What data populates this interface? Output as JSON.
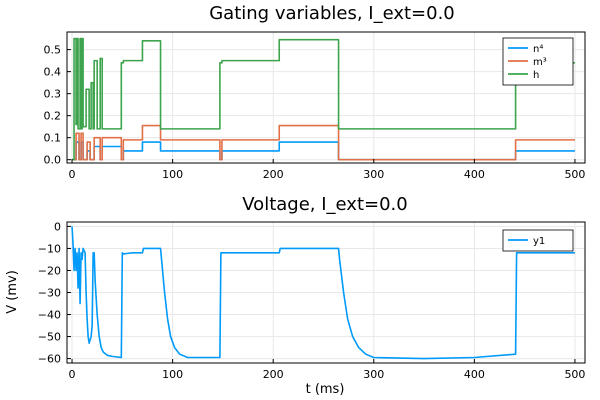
{
  "chart_data": [
    {
      "type": "line",
      "title": "Gating variables, I_ext=0.0",
      "xlabel": "",
      "ylabel": "",
      "xlim": [
        -5,
        510
      ],
      "ylim": [
        -0.015,
        0.58
      ],
      "xticks": [
        0,
        100,
        200,
        300,
        400,
        500
      ],
      "yticks": [
        0.0,
        0.1,
        0.2,
        0.3,
        0.4,
        0.5
      ],
      "ytick_labels": [
        "0.0",
        "0.1",
        "0.2",
        "0.3",
        "0.4",
        "0.5"
      ],
      "grid": true,
      "legend_position": "top-right",
      "series": [
        {
          "name": "n⁴",
          "color": "#009AFA",
          "points": [
            [
              0,
              0
            ],
            [
              4,
              0
            ],
            [
              4,
              0.08
            ],
            [
              7,
              0.08
            ],
            [
              7,
              0
            ],
            [
              9,
              0
            ],
            [
              9,
              0.08
            ],
            [
              11,
              0.08
            ],
            [
              11,
              0
            ],
            [
              15,
              0
            ],
            [
              15,
              0.04
            ],
            [
              18,
              0.04
            ],
            [
              18,
              0
            ],
            [
              22,
              0
            ],
            [
              22,
              0.06
            ],
            [
              28,
              0.06
            ],
            [
              28,
              0
            ],
            [
              30,
              0
            ],
            [
              30,
              0.06
            ],
            [
              49,
              0.06
            ],
            [
              49,
              0
            ],
            [
              51,
              0
            ],
            [
              51,
              0.04
            ],
            [
              70,
              0.04
            ],
            [
              70,
              0.08
            ],
            [
              88,
              0.08
            ],
            [
              88,
              0.04
            ],
            [
              147,
              0.04
            ],
            [
              147,
              0
            ],
            [
              149,
              0
            ],
            [
              149,
              0.04
            ],
            [
              206,
              0.04
            ],
            [
              206,
              0.08
            ],
            [
              265,
              0.08
            ],
            [
              265,
              0
            ],
            [
              441,
              0
            ],
            [
              441,
              0.04
            ],
            [
              500,
              0.04
            ]
          ]
        },
        {
          "name": "m³",
          "color": "#E26F46",
          "points": [
            [
              0,
              0
            ],
            [
              4,
              0
            ],
            [
              4,
              0.12
            ],
            [
              7,
              0.12
            ],
            [
              7,
              0
            ],
            [
              9,
              0
            ],
            [
              9,
              0.12
            ],
            [
              11,
              0.12
            ],
            [
              11,
              0
            ],
            [
              15,
              0
            ],
            [
              15,
              0.08
            ],
            [
              18,
              0.08
            ],
            [
              18,
              0
            ],
            [
              22,
              0
            ],
            [
              22,
              0.1
            ],
            [
              28,
              0.1
            ],
            [
              28,
              0
            ],
            [
              30,
              0
            ],
            [
              30,
              0.1
            ],
            [
              49,
              0.1
            ],
            [
              49,
              0
            ],
            [
              51,
              0
            ],
            [
              51,
              0.09
            ],
            [
              70,
              0.09
            ],
            [
              70,
              0.155
            ],
            [
              88,
              0.155
            ],
            [
              88,
              0.09
            ],
            [
              147,
              0.09
            ],
            [
              147,
              0
            ],
            [
              149,
              0
            ],
            [
              149,
              0.09
            ],
            [
              206,
              0.09
            ],
            [
              206,
              0.155
            ],
            [
              265,
              0.155
            ],
            [
              265,
              0
            ],
            [
              441,
              0
            ],
            [
              441,
              0.09
            ],
            [
              500,
              0.09
            ]
          ]
        },
        {
          "name": "h",
          "color": "#3DA44D",
          "points": [
            [
              0,
              0
            ],
            [
              2,
              0
            ],
            [
              2,
              0.55
            ],
            [
              4,
              0.55
            ],
            [
              4,
              0.16
            ],
            [
              5,
              0.16
            ],
            [
              5,
              0.55
            ],
            [
              6,
              0.55
            ],
            [
              6,
              0.14
            ],
            [
              8,
              0.14
            ],
            [
              8,
              0.55
            ],
            [
              9,
              0.55
            ],
            [
              9,
              0.14
            ],
            [
              10,
              0.14
            ],
            [
              10,
              0.55
            ],
            [
              11,
              0.55
            ],
            [
              11,
              0.15
            ],
            [
              14,
              0.15
            ],
            [
              14,
              0.32
            ],
            [
              17,
              0.32
            ],
            [
              17,
              0.14
            ],
            [
              19,
              0.14
            ],
            [
              19,
              0.35
            ],
            [
              21,
              0.35
            ],
            [
              21,
              0.14
            ],
            [
              22,
              0.14
            ],
            [
              22,
              0.45
            ],
            [
              25,
              0.45
            ],
            [
              25,
              0.14
            ],
            [
              28,
              0.14
            ],
            [
              28,
              0.46
            ],
            [
              30,
              0.46
            ],
            [
              30,
              0.14
            ],
            [
              49,
              0.14
            ],
            [
              49,
              0.44
            ],
            [
              51,
              0.44
            ],
            [
              51,
              0.45
            ],
            [
              70,
              0.45
            ],
            [
              70,
              0.54
            ],
            [
              88,
              0.54
            ],
            [
              88,
              0.14
            ],
            [
              147,
              0.14
            ],
            [
              147,
              0.44
            ],
            [
              149,
              0.44
            ],
            [
              149,
              0.45
            ],
            [
              206,
              0.45
            ],
            [
              206,
              0.545
            ],
            [
              265,
              0.545
            ],
            [
              265,
              0.14
            ],
            [
              441,
              0.14
            ],
            [
              441,
              0.44
            ],
            [
              500,
              0.44
            ]
          ]
        }
      ]
    },
    {
      "type": "line",
      "title": "Voltage, I_ext=0.0",
      "xlabel": "t (ms)",
      "ylabel": "V (mv)",
      "xlim": [
        -5,
        510
      ],
      "ylim": [
        -62,
        2
      ],
      "xticks": [
        0,
        100,
        200,
        300,
        400,
        500
      ],
      "yticks": [
        0,
        -10,
        -20,
        -30,
        -40,
        -50,
        -60
      ],
      "ytick_labels": [
        "0",
        "−10",
        "−20",
        "−30",
        "−40",
        "−50",
        "−60"
      ],
      "grid": true,
      "legend_position": "top-right",
      "series": [
        {
          "name": "y1",
          "color": "#009AFA",
          "points": [
            [
              0,
              0
            ],
            [
              1,
              -8
            ],
            [
              2,
              -20
            ],
            [
              3,
              -10
            ],
            [
              4,
              -20
            ],
            [
              5,
              -12
            ],
            [
              6,
              -28
            ],
            [
              7,
              -10
            ],
            [
              8,
              -35
            ],
            [
              9,
              -12
            ],
            [
              10,
              -15
            ],
            [
              11,
              -10
            ],
            [
              13,
              -12
            ],
            [
              14,
              -30
            ],
            [
              15,
              -42
            ],
            [
              16,
              -50
            ],
            [
              17,
              -53
            ],
            [
              19,
              -50
            ],
            [
              20,
              -45
            ],
            [
              21,
              -12
            ],
            [
              22,
              -12
            ],
            [
              23,
              -25
            ],
            [
              25,
              -40
            ],
            [
              27,
              -50
            ],
            [
              29,
              -55
            ],
            [
              31,
              -57
            ],
            [
              35,
              -58.5
            ],
            [
              40,
              -59
            ],
            [
              49,
              -59.5
            ],
            [
              50,
              -12
            ],
            [
              51,
              -12.5
            ],
            [
              60,
              -12
            ],
            [
              70,
              -12
            ],
            [
              71,
              -10
            ],
            [
              88,
              -10
            ],
            [
              89,
              -15
            ],
            [
              92,
              -30
            ],
            [
              95,
              -42
            ],
            [
              98,
              -50
            ],
            [
              102,
              -55
            ],
            [
              107,
              -58
            ],
            [
              115,
              -59.5
            ],
            [
              147,
              -59.5
            ],
            [
              148,
              -12
            ],
            [
              160,
              -12
            ],
            [
              180,
              -12
            ],
            [
              206,
              -12
            ],
            [
              207,
              -10
            ],
            [
              265,
              -10
            ],
            [
              266,
              -15
            ],
            [
              270,
              -30
            ],
            [
              274,
              -42
            ],
            [
              279,
              -50
            ],
            [
              285,
              -55
            ],
            [
              292,
              -58
            ],
            [
              300,
              -59.5
            ],
            [
              350,
              -60
            ],
            [
              400,
              -59.5
            ],
            [
              441,
              -58
            ],
            [
              442,
              -12
            ],
            [
              460,
              -12
            ],
            [
              500,
              -12
            ]
          ]
        }
      ]
    }
  ]
}
